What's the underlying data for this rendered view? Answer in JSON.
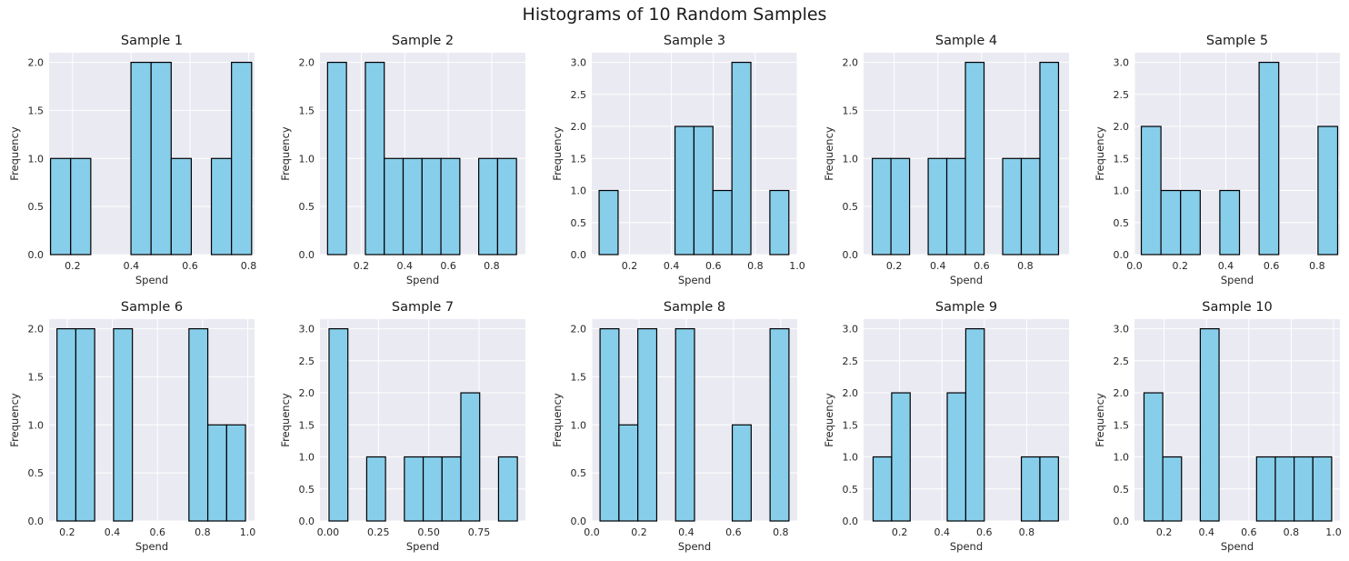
{
  "figure": {
    "title": "Histograms of 10 Random Samples"
  },
  "style": {
    "bar_fill": "#87ceeb",
    "bar_edge": "#000000",
    "axes_bg": "#eaeaf2",
    "grid": "#ffffff"
  },
  "chart_data": [
    {
      "type": "bar",
      "title": "Sample 1",
      "xlabel": "Spend",
      "ylabel": "Frequency",
      "xlim": [
        0.12,
        0.82
      ],
      "ylim": [
        0,
        2.1
      ],
      "xticks": [
        0.2,
        0.4,
        0.6,
        0.8
      ],
      "xtick_labels": [
        "0.2",
        "0.4",
        "0.6",
        "0.8"
      ],
      "yticks": [
        0,
        0.5,
        1,
        1.5,
        2
      ],
      "ytick_labels": [
        "0.0",
        "0.5",
        "1.0",
        "1.5",
        "2.0"
      ],
      "bin_start": 0.125,
      "bin_width": 0.0685,
      "counts": [
        1,
        1,
        0,
        0,
        2,
        2,
        1,
        0,
        1,
        2
      ]
    },
    {
      "type": "bar",
      "title": "Sample 2",
      "xlabel": "Spend",
      "ylabel": "Frequency",
      "xlim": [
        0.01,
        0.955
      ],
      "ylim": [
        0,
        2.1
      ],
      "xticks": [
        0.2,
        0.4,
        0.6,
        0.8
      ],
      "xtick_labels": [
        "0.2",
        "0.4",
        "0.6",
        "0.8"
      ],
      "yticks": [
        0,
        0.5,
        1,
        1.5,
        2
      ],
      "ytick_labels": [
        "0.0",
        "0.5",
        "1.0",
        "1.5",
        "2.0"
      ],
      "bin_start": 0.045,
      "bin_width": 0.0869,
      "counts": [
        2,
        0,
        2,
        1,
        1,
        1,
        1,
        0,
        1,
        1
      ]
    },
    {
      "type": "bar",
      "title": "Sample 3",
      "xlabel": "Spend",
      "ylabel": "Frequency",
      "xlim": [
        0.02,
        1.0
      ],
      "ylim": [
        0,
        3.15
      ],
      "xticks": [
        0.2,
        0.4,
        0.6,
        0.8,
        1.0
      ],
      "xtick_labels": [
        "0.2",
        "0.4",
        "0.6",
        "0.8",
        "1.0"
      ],
      "yticks": [
        0,
        0.5,
        1,
        1.5,
        2,
        2.5,
        3
      ],
      "ytick_labels": [
        "0.0",
        "0.5",
        "1.0",
        "1.5",
        "2.0",
        "2.5",
        "3.0"
      ],
      "bin_start": 0.055,
      "bin_width": 0.0905,
      "counts": [
        1,
        0,
        0,
        0,
        2,
        2,
        1,
        3,
        0,
        1
      ]
    },
    {
      "type": "bar",
      "title": "Sample 4",
      "xlabel": "Spend",
      "ylabel": "Frequency",
      "xlim": [
        0.06,
        1.0
      ],
      "ylim": [
        0,
        2.1
      ],
      "xticks": [
        0.2,
        0.4,
        0.6,
        0.8
      ],
      "xtick_labels": [
        "0.2",
        "0.4",
        "0.6",
        "0.8"
      ],
      "yticks": [
        0,
        0.5,
        1,
        1.5,
        2
      ],
      "ytick_labels": [
        "0.0",
        "0.5",
        "1.0",
        "1.5",
        "2.0"
      ],
      "bin_start": 0.1,
      "bin_width": 0.0852,
      "counts": [
        1,
        1,
        0,
        1,
        1,
        2,
        0,
        1,
        1,
        2
      ]
    },
    {
      "type": "bar",
      "title": "Sample 5",
      "xlabel": "Spend",
      "ylabel": "Frequency",
      "xlim": [
        0.0,
        0.9
      ],
      "ylim": [
        0,
        3.15
      ],
      "xticks": [
        0.0,
        0.2,
        0.4,
        0.6,
        0.8
      ],
      "xtick_labels": [
        "0.0",
        "0.2",
        "0.4",
        "0.6",
        "0.8"
      ],
      "yticks": [
        0,
        0.5,
        1,
        1.5,
        2,
        2.5,
        3
      ],
      "ytick_labels": [
        "0.0",
        "0.5",
        "1.0",
        "1.5",
        "2.0",
        "2.5",
        "3.0"
      ],
      "bin_start": 0.03,
      "bin_width": 0.086,
      "counts": [
        2,
        1,
        1,
        0,
        1,
        0,
        3,
        0,
        0,
        2
      ]
    },
    {
      "type": "bar",
      "title": "Sample 6",
      "xlabel": "Spend",
      "ylabel": "Frequency",
      "xlim": [
        0.12,
        1.03
      ],
      "ylim": [
        0,
        2.1
      ],
      "xticks": [
        0.2,
        0.4,
        0.6,
        0.8,
        1.0
      ],
      "xtick_labels": [
        "0.2",
        "0.4",
        "0.6",
        "0.8",
        "1.0"
      ],
      "yticks": [
        0,
        0.5,
        1,
        1.5,
        2
      ],
      "ytick_labels": [
        "0.0",
        "0.5",
        "1.0",
        "1.5",
        "2.0"
      ],
      "bin_start": 0.155,
      "bin_width": 0.0835,
      "counts": [
        2,
        2,
        0,
        2,
        0,
        0,
        0,
        2,
        1,
        1
      ]
    },
    {
      "type": "bar",
      "title": "Sample 7",
      "xlabel": "Spend",
      "ylabel": "Frequency",
      "xlim": [
        -0.04,
        0.98
      ],
      "ylim": [
        0,
        3.15
      ],
      "xticks": [
        0.0,
        0.25,
        0.5,
        0.75
      ],
      "xtick_labels": [
        "0.00",
        "0.25",
        "0.50",
        "0.75"
      ],
      "yticks": [
        0,
        0.5,
        1,
        1.5,
        2,
        2.5,
        3
      ],
      "ytick_labels": [
        "0.0",
        "0.5",
        "1.0",
        "1.5",
        "2.0",
        "2.5",
        "3.0"
      ],
      "bin_start": 0.005,
      "bin_width": 0.0935,
      "counts": [
        3,
        0,
        1,
        0,
        1,
        1,
        1,
        2,
        0,
        1
      ]
    },
    {
      "type": "bar",
      "title": "Sample 8",
      "xlabel": "Spend",
      "ylabel": "Frequency",
      "xlim": [
        0.0,
        0.87
      ],
      "ylim": [
        0,
        2.1
      ],
      "xticks": [
        0.0,
        0.2,
        0.4,
        0.6,
        0.8
      ],
      "xtick_labels": [
        "0.0",
        "0.2",
        "0.4",
        "0.6",
        "0.8"
      ],
      "yticks": [
        0,
        0.5,
        1,
        1.5,
        2
      ],
      "ytick_labels": [
        "0.0",
        "0.5",
        "1.0",
        "1.5",
        "2.0"
      ],
      "bin_start": 0.035,
      "bin_width": 0.08,
      "counts": [
        2,
        1,
        2,
        0,
        2,
        0,
        0,
        1,
        0,
        2
      ]
    },
    {
      "type": "bar",
      "title": "Sample 9",
      "xlabel": "Spend",
      "ylabel": "Frequency",
      "xlim": [
        0.03,
        1.0
      ],
      "ylim": [
        0,
        3.15
      ],
      "xticks": [
        0.2,
        0.4,
        0.6,
        0.8
      ],
      "xtick_labels": [
        "0.2",
        "0.4",
        "0.6",
        "0.8"
      ],
      "yticks": [
        0,
        0.5,
        1,
        1.5,
        2,
        2.5,
        3
      ],
      "ytick_labels": [
        "0.0",
        "0.5",
        "1.0",
        "1.5",
        "2.0",
        "2.5",
        "3.0"
      ],
      "bin_start": 0.075,
      "bin_width": 0.0875,
      "counts": [
        1,
        2,
        0,
        0,
        2,
        3,
        0,
        0,
        1,
        1
      ]
    },
    {
      "type": "bar",
      "title": "Sample 10",
      "xlabel": "Spend",
      "ylabel": "Frequency",
      "xlim": [
        0.06,
        1.03
      ],
      "ylim": [
        0,
        3.15
      ],
      "xticks": [
        0.2,
        0.4,
        0.6,
        0.8,
        1.0
      ],
      "xtick_labels": [
        "0.2",
        "0.4",
        "0.6",
        "0.8",
        "1.0"
      ],
      "yticks": [
        0,
        0.5,
        1,
        1.5,
        2,
        2.5,
        3
      ],
      "ytick_labels": [
        "0.0",
        "0.5",
        "1.0",
        "1.5",
        "2.0",
        "2.5",
        "3.0"
      ],
      "bin_start": 0.105,
      "bin_width": 0.0886,
      "counts": [
        2,
        1,
        0,
        3,
        0,
        0,
        1,
        1,
        1,
        1
      ]
    }
  ]
}
